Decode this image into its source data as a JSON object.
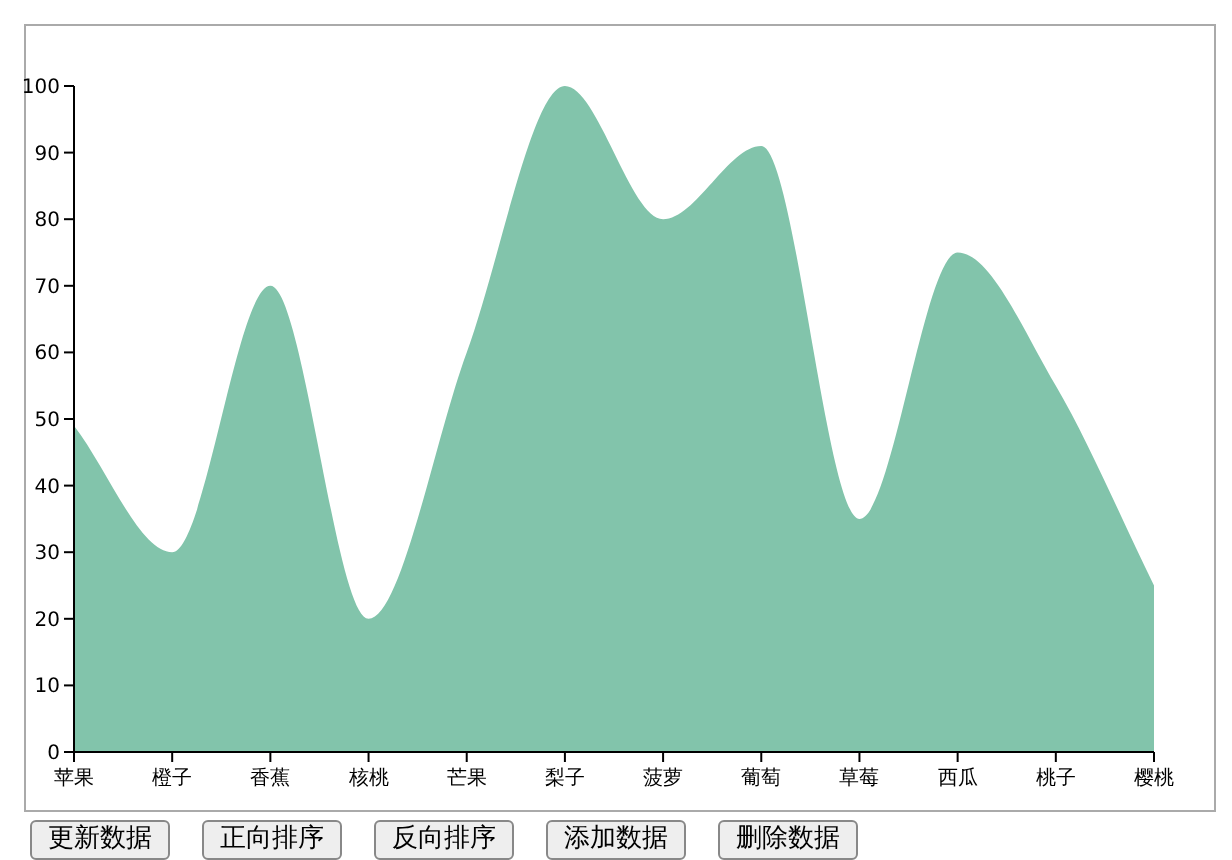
{
  "chart_data": {
    "type": "area",
    "categories": [
      "苹果",
      "橙子",
      "香蕉",
      "核桃",
      "芒果",
      "梨子",
      "菠萝",
      "葡萄",
      "草莓",
      "西瓜",
      "桃子",
      "樱桃"
    ],
    "series": [
      {
        "color": "#82c4ab",
        "values": [
          49,
          30,
          70,
          20,
          60,
          100,
          80,
          91,
          35,
          75,
          55,
          25
        ]
      }
    ],
    "ylim": [
      0,
      100
    ],
    "yticks": [
      0,
      10,
      20,
      30,
      40,
      50,
      60,
      70,
      80,
      90,
      100
    ],
    "grid": false,
    "annotations": [
      "更新数据",
      "正向排序",
      "反向排序",
      "添加数据",
      "删除数据"
    ]
  }
}
